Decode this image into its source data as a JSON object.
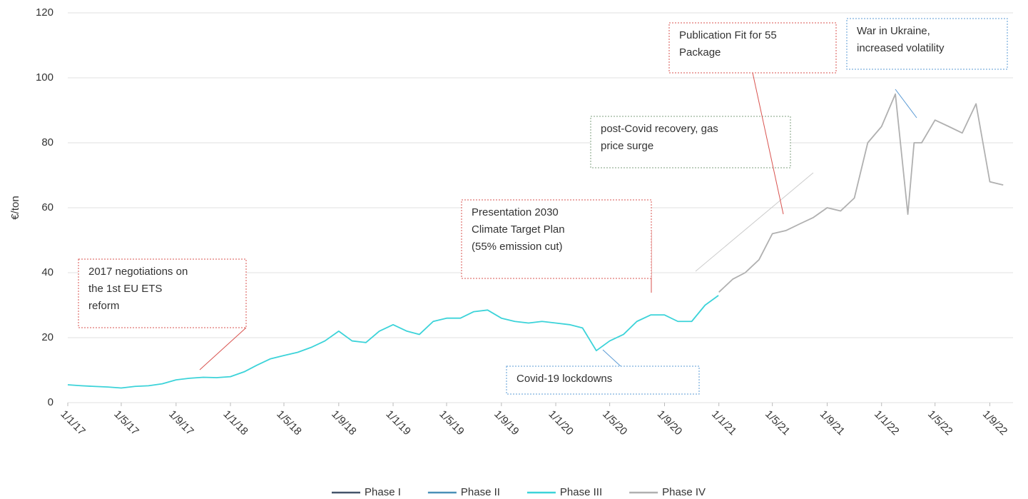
{
  "chart_data": {
    "type": "line",
    "y_label": "€/ton",
    "ylim": [
      0,
      120
    ],
    "yticks": [
      0,
      20,
      40,
      60,
      80,
      100,
      120
    ],
    "grid": true,
    "xlim": [
      "2017-01-01",
      "2022-10-23"
    ],
    "xticks": [
      {
        "value": "2017-01-01",
        "label": "1/1/17"
      },
      {
        "value": "2017-05-01",
        "label": "1/5/17"
      },
      {
        "value": "2017-09-01",
        "label": "1/9/17"
      },
      {
        "value": "2018-01-01",
        "label": "1/1/18"
      },
      {
        "value": "2018-05-01",
        "label": "1/5/18"
      },
      {
        "value": "2018-09-01",
        "label": "1/9/18"
      },
      {
        "value": "2019-01-01",
        "label": "1/1/19"
      },
      {
        "value": "2019-05-01",
        "label": "1/5/19"
      },
      {
        "value": "2019-09-01",
        "label": "1/9/19"
      },
      {
        "value": "2020-01-01",
        "label": "1/1/20"
      },
      {
        "value": "2020-05-01",
        "label": "1/5/20"
      },
      {
        "value": "2020-09-01",
        "label": "1/9/20"
      },
      {
        "value": "2021-01-01",
        "label": "1/1/21"
      },
      {
        "value": "2021-05-01",
        "label": "1/5/21"
      },
      {
        "value": "2021-09-01",
        "label": "1/9/21"
      },
      {
        "value": "2022-01-01",
        "label": "1/1/22"
      },
      {
        "value": "2022-05-01",
        "label": "1/5/22"
      },
      {
        "value": "2022-09-01",
        "label": "1/9/22"
      }
    ],
    "x": [
      "2017-01-01",
      "2017-02-01",
      "2017-03-01",
      "2017-04-01",
      "2017-05-01",
      "2017-06-01",
      "2017-07-01",
      "2017-08-01",
      "2017-09-01",
      "2017-10-01",
      "2017-11-01",
      "2017-12-01",
      "2018-01-01",
      "2018-02-01",
      "2018-03-01",
      "2018-04-01",
      "2018-05-01",
      "2018-06-01",
      "2018-07-01",
      "2018-08-01",
      "2018-09-01",
      "2018-10-01",
      "2018-11-01",
      "2018-12-01",
      "2019-01-01",
      "2019-02-01",
      "2019-03-01",
      "2019-04-01",
      "2019-05-01",
      "2019-06-01",
      "2019-07-01",
      "2019-08-01",
      "2019-09-01",
      "2019-10-01",
      "2019-11-01",
      "2019-12-01",
      "2020-01-01",
      "2020-02-01",
      "2020-03-01",
      "2020-04-01",
      "2020-05-01",
      "2020-06-01",
      "2020-07-01",
      "2020-08-01",
      "2020-09-01",
      "2020-10-01",
      "2020-11-01",
      "2020-12-01",
      "2020-12-31",
      "2021-01-01",
      "2021-02-01",
      "2021-03-01",
      "2021-04-01",
      "2021-05-01",
      "2021-06-01",
      "2021-07-01",
      "2021-08-01",
      "2021-09-01",
      "2021-10-01",
      "2021-11-01",
      "2021-12-01",
      "2022-01-01",
      "2022-02-01",
      "2022-03-01",
      "2022-03-15",
      "2022-04-01",
      "2022-05-01",
      "2022-06-01",
      "2022-07-01",
      "2022-08-01",
      "2022-09-01",
      "2022-10-01"
    ],
    "series": [
      {
        "name": "Phase I",
        "color": "#44546a"
      },
      {
        "name": "Phase II",
        "color": "#4a90b8"
      },
      {
        "name": "Phase III",
        "color": "#3cd3d9",
        "values": [
          5.5,
          5.2,
          5,
          4.8,
          4.5,
          5,
          5.2,
          5.8,
          7,
          7.5,
          7.8,
          7.7,
          8,
          9.5,
          11.5,
          13.5,
          14.5,
          15.5,
          17,
          19,
          22,
          19,
          18.5,
          22,
          24,
          22,
          21,
          25,
          26,
          26,
          28,
          28.5,
          26,
          25,
          24.5,
          25,
          24.5,
          24,
          23,
          16,
          19,
          21,
          25,
          27,
          27,
          25,
          25,
          30,
          33,
          null,
          null,
          null,
          null,
          null,
          null,
          null,
          null,
          null,
          null,
          null,
          null,
          null,
          null,
          null,
          null,
          null,
          null,
          null,
          null,
          null,
          null,
          null
        ]
      },
      {
        "name": "Phase IV",
        "color": "#b0b0b0",
        "values": [
          null,
          null,
          null,
          null,
          null,
          null,
          null,
          null,
          null,
          null,
          null,
          null,
          null,
          null,
          null,
          null,
          null,
          null,
          null,
          null,
          null,
          null,
          null,
          null,
          null,
          null,
          null,
          null,
          null,
          null,
          null,
          null,
          null,
          null,
          null,
          null,
          null,
          null,
          null,
          null,
          null,
          null,
          null,
          null,
          null,
          null,
          null,
          null,
          null,
          34,
          38,
          40,
          44,
          52,
          53,
          55,
          57,
          60,
          59,
          63,
          80,
          85,
          95,
          58,
          80,
          80,
          87,
          85,
          83,
          92,
          68,
          67
        ]
      }
    ],
    "annotations": [
      {
        "lines": [
          "2017 negotiations on",
          "the 1st EU ETS",
          "reform"
        ]
      },
      {
        "lines": [
          "Presentation 2030",
          "Climate Target Plan",
          "(55% emission cut)"
        ]
      },
      {
        "lines": [
          "Covid-19 lockdowns"
        ]
      },
      {
        "lines": [
          "post-Covid recovery, gas",
          "price surge"
        ]
      },
      {
        "lines": [
          "Publication Fit for 55",
          "Package"
        ]
      },
      {
        "lines": [
          "War in Ukraine,",
          "increased volatility"
        ]
      }
    ]
  }
}
